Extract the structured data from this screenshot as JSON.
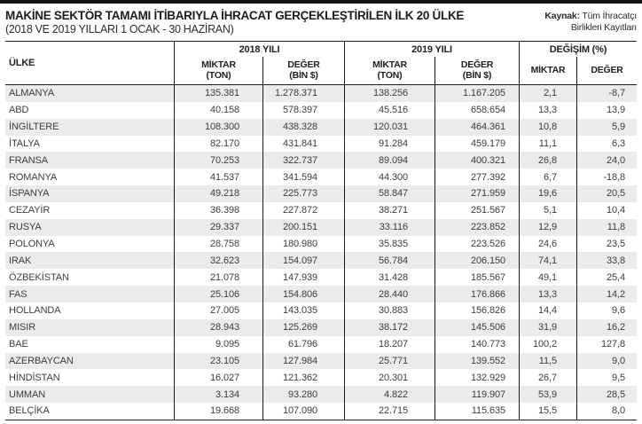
{
  "page": {
    "title": "MAKİNE SEKTÖR TAMAMI İTİBARIYLA İHRACAT GERÇEKLEŞTİRİLEN İLK 20 ÜLKE",
    "subtitle": "(2018 VE 2019 YILLARI 1 OCAK - 30 HAZİRAN)",
    "source_label": "Kaynak:",
    "source_line1": "Tüm İhracatçı",
    "source_line2": "Birlikleri Kayıtları"
  },
  "colors": {
    "accent_bar": "#131313",
    "row_stripe": "#ebebeb",
    "grid_line": "#1c1c1c",
    "text": "#3d3d3d"
  },
  "table": {
    "col_country": "ÜLKE",
    "group_2018": "2018 YILI",
    "group_2019": "2019 YILI",
    "group_change": "DEĞİŞİM (%)",
    "sub_amount_l1": "MİKTAR",
    "sub_amount_l2": "(TON)",
    "sub_value_l1": "DEĞER",
    "sub_value_l2": "(BİN $)",
    "sub_change_amount": "MİKTAR",
    "sub_change_value": "DEĞER",
    "rows": [
      {
        "country": "ALMANYA",
        "m2018": "135.381",
        "v2018": "1.278.371",
        "m2019": "138.256",
        "v2019": "1.167.205",
        "chm": "2,1",
        "chv": "-8,7"
      },
      {
        "country": "ABD",
        "m2018": "40.158",
        "v2018": "578.397",
        "m2019": "45.516",
        "v2019": "658.654",
        "chm": "13,3",
        "chv": "13,9"
      },
      {
        "country": "İNGİLTERE",
        "m2018": "108.300",
        "v2018": "438.328",
        "m2019": "120.031",
        "v2019": "464.361",
        "chm": "10,8",
        "chv": "5,9"
      },
      {
        "country": "İTALYA",
        "m2018": "82.170",
        "v2018": "431.841",
        "m2019": "91.284",
        "v2019": "459.179",
        "chm": "11,1",
        "chv": "6,3"
      },
      {
        "country": "FRANSA",
        "m2018": "70.253",
        "v2018": "322.737",
        "m2019": "89.094",
        "v2019": "400.321",
        "chm": "26,8",
        "chv": "24,0"
      },
      {
        "country": "ROMANYA",
        "m2018": "41.537",
        "v2018": "341.594",
        "m2019": "44.300",
        "v2019": "277.392",
        "chm": "6,7",
        "chv": "-18,8"
      },
      {
        "country": "İSPANYA",
        "m2018": "49.218",
        "v2018": "225.773",
        "m2019": "58.847",
        "v2019": "271.959",
        "chm": "19,6",
        "chv": "20,5"
      },
      {
        "country": "CEZAYİR",
        "m2018": "36.398",
        "v2018": "227.872",
        "m2019": "38.271",
        "v2019": "251.567",
        "chm": "5,1",
        "chv": "10,4"
      },
      {
        "country": "RUSYA",
        "m2018": "29.337",
        "v2018": "200.151",
        "m2019": "33.116",
        "v2019": "223.852",
        "chm": "12,9",
        "chv": "11,8"
      },
      {
        "country": "POLONYA",
        "m2018": "28.758",
        "v2018": "180.980",
        "m2019": "35.835",
        "v2019": "223.526",
        "chm": "24,6",
        "chv": "23,5"
      },
      {
        "country": "IRAK",
        "m2018": "32.623",
        "v2018": "154.097",
        "m2019": "56.784",
        "v2019": "206.150",
        "chm": "74,1",
        "chv": "33,8"
      },
      {
        "country": "ÖZBEKİSTAN",
        "m2018": "21.078",
        "v2018": "147.939",
        "m2019": "31.428",
        "v2019": "185.567",
        "chm": "49,1",
        "chv": "25,4"
      },
      {
        "country": "FAS",
        "m2018": "25.106",
        "v2018": "154.806",
        "m2019": "28.440",
        "v2019": "176.866",
        "chm": "13,3",
        "chv": "14,2"
      },
      {
        "country": "HOLLANDA",
        "m2018": "27.005",
        "v2018": "143.035",
        "m2019": "30.883",
        "v2019": "156.826",
        "chm": "14,4",
        "chv": "9,6"
      },
      {
        "country": "MISIR",
        "m2018": "28.943",
        "v2018": "125.269",
        "m2019": "38.172",
        "v2019": "145.506",
        "chm": "31,9",
        "chv": "16,2"
      },
      {
        "country": "BAE",
        "m2018": "9.095",
        "v2018": "61.796",
        "m2019": "18.207",
        "v2019": "140.773",
        "chm": "100,2",
        "chv": "127,8"
      },
      {
        "country": "AZERBAYCAN",
        "m2018": "23.105",
        "v2018": "127.984",
        "m2019": "25.771",
        "v2019": "139.552",
        "chm": "11,5",
        "chv": "9,0"
      },
      {
        "country": "HİNDİSTAN",
        "m2018": "16.027",
        "v2018": "121.362",
        "m2019": "20.301",
        "v2019": "132.929",
        "chm": "26,7",
        "chv": "9,5"
      },
      {
        "country": "UMMAN",
        "m2018": "3.134",
        "v2018": "93.280",
        "m2019": "4.822",
        "v2019": "119.907",
        "chm": "53,9",
        "chv": "28,5"
      },
      {
        "country": "BELÇİKA",
        "m2018": "19.668",
        "v2018": "107.090",
        "m2019": "22.715",
        "v2019": "115.635",
        "chm": "15,5",
        "chv": "8,0"
      }
    ]
  },
  "chart_data": {
    "type": "table",
    "title": "MAKİNE SEKTÖR TAMAMI İTİBARIYLA İHRACAT GERÇEKLEŞTİRİLEN İLK 20 ÜLKE (2018 VE 2019 YILLARI 1 OCAK - 30 HAZİRAN)",
    "source": "Kaynak: Tüm İhracatçı Birlikleri Kayıtları",
    "columns": [
      "ÜLKE",
      "2018 YILI MİKTAR (TON)",
      "2018 YILI DEĞER (BİN $)",
      "2019 YILI MİKTAR (TON)",
      "2019 YILI DEĞER (BİN $)",
      "DEĞİŞİM MİKTAR (%)",
      "DEĞİŞİM DEĞER (%)"
    ],
    "rows": [
      [
        "ALMANYA",
        135381,
        1278371,
        138256,
        1167205,
        2.1,
        -8.7
      ],
      [
        "ABD",
        40158,
        578397,
        45516,
        658654,
        13.3,
        13.9
      ],
      [
        "İNGİLTERE",
        108300,
        438328,
        120031,
        464361,
        10.8,
        5.9
      ],
      [
        "İTALYA",
        82170,
        431841,
        91284,
        459179,
        11.1,
        6.3
      ],
      [
        "FRANSA",
        70253,
        322737,
        89094,
        400321,
        26.8,
        24.0
      ],
      [
        "ROMANYA",
        41537,
        341594,
        44300,
        277392,
        6.7,
        -18.8
      ],
      [
        "İSPANYA",
        49218,
        225773,
        58847,
        271959,
        19.6,
        20.5
      ],
      [
        "CEZAYİR",
        36398,
        227872,
        38271,
        251567,
        5.1,
        10.4
      ],
      [
        "RUSYA",
        29337,
        200151,
        33116,
        223852,
        12.9,
        11.8
      ],
      [
        "POLONYA",
        28758,
        180980,
        35835,
        223526,
        24.6,
        23.5
      ],
      [
        "IRAK",
        32623,
        154097,
        56784,
        206150,
        74.1,
        33.8
      ],
      [
        "ÖZBEKİSTAN",
        21078,
        147939,
        31428,
        185567,
        49.1,
        25.4
      ],
      [
        "FAS",
        25106,
        154806,
        28440,
        176866,
        13.3,
        14.2
      ],
      [
        "HOLLANDA",
        27005,
        143035,
        30883,
        156826,
        14.4,
        9.6
      ],
      [
        "MISIR",
        28943,
        125269,
        38172,
        145506,
        31.9,
        16.2
      ],
      [
        "BAE",
        9095,
        61796,
        18207,
        140773,
        100.2,
        127.8
      ],
      [
        "AZERBAYCAN",
        23105,
        127984,
        25771,
        139552,
        11.5,
        9.0
      ],
      [
        "HİNDİSTAN",
        16027,
        121362,
        20301,
        132929,
        26.7,
        9.5
      ],
      [
        "UMMAN",
        3134,
        93280,
        4822,
        119907,
        53.9,
        28.5
      ],
      [
        "BELÇİKA",
        19668,
        107090,
        22715,
        115635,
        15.5,
        8.0
      ]
    ]
  }
}
